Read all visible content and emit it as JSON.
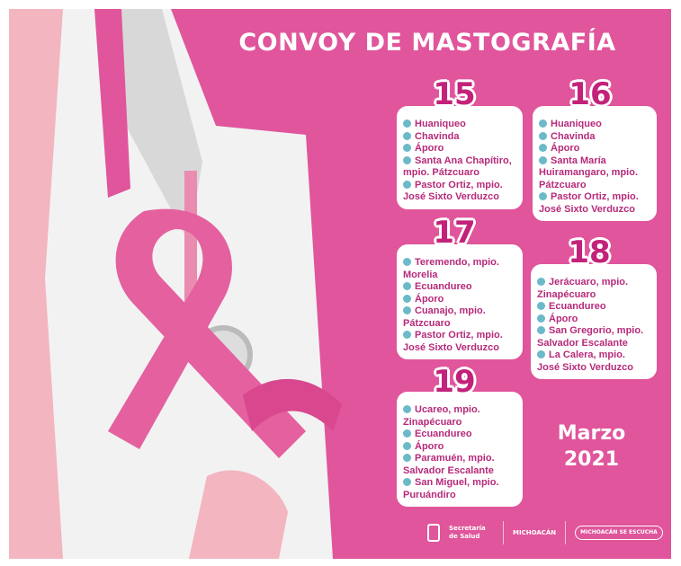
{
  "title": "CONVOY DE MASTOGRAFÍA",
  "days": [
    {
      "day": "15",
      "items": [
        "Huaniqueo",
        "Chavinda",
        "Áporo",
        "Santa Ana Chapítiro, mpio. Pátzcuaro",
        "Pastor Ortiz, mpio. José Sixto Verduzco"
      ]
    },
    {
      "day": "16",
      "items": [
        "Huaniqueo",
        "Chavinda",
        "Áporo",
        "Santa María Huiramangaro, mpio. Pátzcuaro",
        "Pastor Ortiz, mpio. José Sixto Verduzco"
      ]
    },
    {
      "day": "17",
      "items": [
        "Teremendo, mpio. Morelia",
        "Ecuandureo",
        "Áporo",
        "Cuanajo, mpio. Pátzcuaro",
        "Pastor Ortiz, mpio. José Sixto Verduzco"
      ]
    },
    {
      "day": "18",
      "items": [
        "Jerácuaro, mpio. Zinapécuaro",
        "Ecuandureo",
        "Áporo",
        "San Gregorio, mpio. Salvador Escalante",
        "La Calera, mpio. José Sixto Verduzco"
      ]
    },
    {
      "day": "19",
      "items": [
        "Ucareo, mpio. Zinapécuaro",
        "Ecuandureo",
        "Áporo",
        "Paramuén, mpio. Salvador Escalante",
        "San Miguel, mpio. Puruándiro"
      ]
    }
  ],
  "month": "Marzo",
  "year": "2021",
  "logos": {
    "salud": "Secretaría de Salud",
    "michoacan": "MICHOACÁN",
    "radio": "MICHOACÁN SE ESCUCHA"
  },
  "colors": {
    "background": "#e0559b",
    "text": "#b62a7a",
    "bullet": "#6bb9c9"
  }
}
